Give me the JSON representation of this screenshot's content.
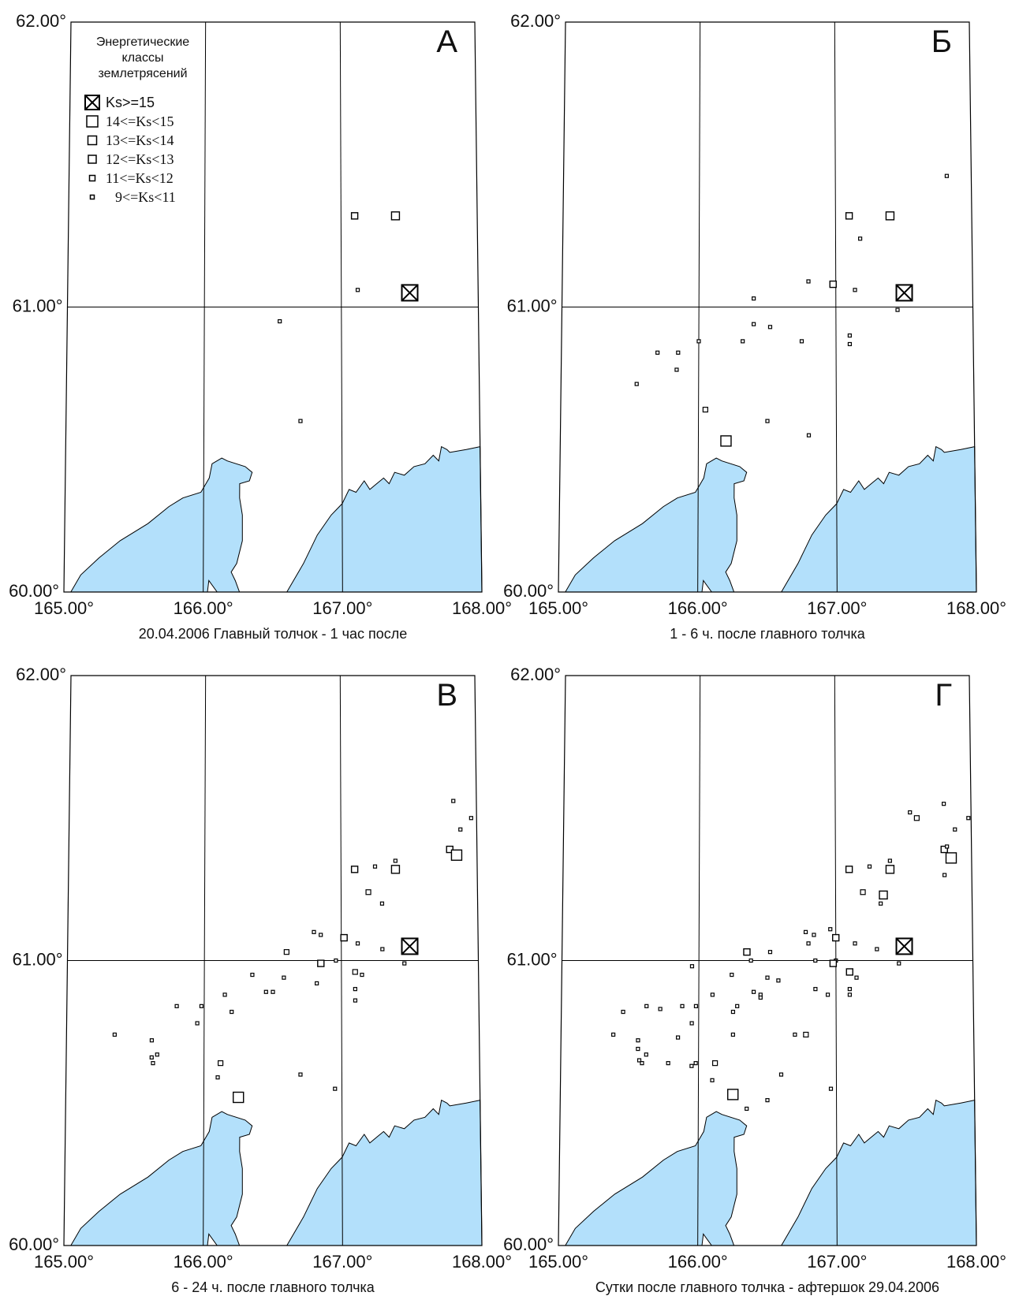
{
  "legend": {
    "title_lines": [
      "Энергетические",
      "классы",
      "землетрясений"
    ],
    "items": [
      {
        "label": "Ks>=15",
        "icon": "crossed-square",
        "serif": false
      },
      {
        "label": "14<=Ks<15",
        "icon": "square-large",
        "serif": true
      },
      {
        "label": "13<=Ks<14",
        "icon": "square-medium",
        "serif": true
      },
      {
        "label": "12<=Ks<13",
        "icon": "square-small",
        "serif": true
      },
      {
        "label": "11<=Ks<12",
        "icon": "square-xsmall",
        "serif": true
      },
      {
        "label": "9<=Ks<11",
        "icon": "square-tiny",
        "serif": true
      }
    ]
  },
  "axes": {
    "lat_ticks": [
      "62.00°",
      "61.00°",
      "60.00°"
    ],
    "lon_ticks": [
      "165.00°",
      "166.00°",
      "167.00°",
      "168.00°"
    ],
    "lat_range": [
      60,
      62
    ],
    "lon_range": [
      165,
      168
    ]
  },
  "colors": {
    "water": "#b3e0fb",
    "line": "#000000"
  },
  "panels": [
    {
      "letter": "А",
      "caption": "20.04.2006 Главный толчок - 1 час после",
      "events": [
        {
          "lon": 167.5,
          "lat": 61.05,
          "ks": 15
        },
        {
          "lon": 167.1,
          "lat": 61.32,
          "ks": 12
        },
        {
          "lon": 167.4,
          "lat": 61.32,
          "ks": 13
        },
        {
          "lon": 167.12,
          "lat": 61.06,
          "ks": 10
        },
        {
          "lon": 166.55,
          "lat": 60.95,
          "ks": 10
        },
        {
          "lon": 166.7,
          "lat": 60.6,
          "ks": 10
        }
      ]
    },
    {
      "letter": "Б",
      "caption": "1 - 6 ч. после главного толчка",
      "events": [
        {
          "lon": 167.5,
          "lat": 61.05,
          "ks": 15
        },
        {
          "lon": 167.1,
          "lat": 61.32,
          "ks": 12
        },
        {
          "lon": 167.4,
          "lat": 61.32,
          "ks": 13
        },
        {
          "lon": 167.18,
          "lat": 61.24,
          "ks": 10
        },
        {
          "lon": 167.82,
          "lat": 61.46,
          "ks": 10
        },
        {
          "lon": 166.8,
          "lat": 61.09,
          "ks": 10
        },
        {
          "lon": 166.98,
          "lat": 61.08,
          "ks": 12
        },
        {
          "lon": 167.14,
          "lat": 61.06,
          "ks": 10
        },
        {
          "lon": 166.4,
          "lat": 61.03,
          "ks": 10
        },
        {
          "lon": 167.45,
          "lat": 60.99,
          "ks": 10
        },
        {
          "lon": 166.4,
          "lat": 60.94,
          "ks": 10
        },
        {
          "lon": 166.52,
          "lat": 60.93,
          "ks": 10
        },
        {
          "lon": 166.0,
          "lat": 60.88,
          "ks": 10
        },
        {
          "lon": 166.32,
          "lat": 60.88,
          "ks": 10
        },
        {
          "lon": 166.75,
          "lat": 60.88,
          "ks": 10
        },
        {
          "lon": 167.1,
          "lat": 60.9,
          "ks": 10
        },
        {
          "lon": 167.1,
          "lat": 60.87,
          "ks": 10
        },
        {
          "lon": 165.85,
          "lat": 60.84,
          "ks": 10
        },
        {
          "lon": 165.7,
          "lat": 60.84,
          "ks": 10
        },
        {
          "lon": 165.84,
          "lat": 60.78,
          "ks": 10
        },
        {
          "lon": 165.55,
          "lat": 60.73,
          "ks": 10
        },
        {
          "lon": 166.05,
          "lat": 60.64,
          "ks": 11
        },
        {
          "lon": 166.5,
          "lat": 60.6,
          "ks": 10
        },
        {
          "lon": 166.8,
          "lat": 60.55,
          "ks": 10
        },
        {
          "lon": 166.2,
          "lat": 60.53,
          "ks": 14
        }
      ]
    },
    {
      "letter": "В",
      "caption": "6 - 24 ч. после главного толчка",
      "events": [
        {
          "lon": 167.5,
          "lat": 61.05,
          "ks": 15
        },
        {
          "lon": 167.1,
          "lat": 61.32,
          "ks": 12
        },
        {
          "lon": 167.4,
          "lat": 61.32,
          "ks": 13
        },
        {
          "lon": 167.25,
          "lat": 61.33,
          "ks": 10
        },
        {
          "lon": 167.4,
          "lat": 61.35,
          "ks": 10
        },
        {
          "lon": 167.2,
          "lat": 61.24,
          "ks": 11
        },
        {
          "lon": 167.3,
          "lat": 61.2,
          "ks": 10
        },
        {
          "lon": 167.83,
          "lat": 61.56,
          "ks": 10
        },
        {
          "lon": 167.96,
          "lat": 61.5,
          "ks": 10
        },
        {
          "lon": 167.88,
          "lat": 61.46,
          "ks": 10
        },
        {
          "lon": 167.8,
          "lat": 61.39,
          "ks": 12
        },
        {
          "lon": 167.85,
          "lat": 61.37,
          "ks": 14
        },
        {
          "lon": 167.02,
          "lat": 61.08,
          "ks": 12
        },
        {
          "lon": 166.8,
          "lat": 61.1,
          "ks": 10
        },
        {
          "lon": 166.85,
          "lat": 61.09,
          "ks": 10
        },
        {
          "lon": 167.12,
          "lat": 61.06,
          "ks": 10
        },
        {
          "lon": 167.3,
          "lat": 61.04,
          "ks": 10
        },
        {
          "lon": 166.6,
          "lat": 61.03,
          "ks": 11
        },
        {
          "lon": 166.96,
          "lat": 61.0,
          "ks": 10
        },
        {
          "lon": 167.46,
          "lat": 60.99,
          "ks": 10
        },
        {
          "lon": 166.85,
          "lat": 60.99,
          "ks": 12
        },
        {
          "lon": 167.1,
          "lat": 60.96,
          "ks": 11
        },
        {
          "lon": 167.15,
          "lat": 60.95,
          "ks": 10
        },
        {
          "lon": 166.82,
          "lat": 60.92,
          "ks": 10
        },
        {
          "lon": 166.58,
          "lat": 60.94,
          "ks": 10
        },
        {
          "lon": 166.35,
          "lat": 60.95,
          "ks": 10
        },
        {
          "lon": 166.45,
          "lat": 60.89,
          "ks": 10
        },
        {
          "lon": 166.5,
          "lat": 60.89,
          "ks": 10
        },
        {
          "lon": 166.15,
          "lat": 60.88,
          "ks": 10
        },
        {
          "lon": 167.1,
          "lat": 60.9,
          "ks": 10
        },
        {
          "lon": 167.1,
          "lat": 60.86,
          "ks": 10
        },
        {
          "lon": 166.2,
          "lat": 60.82,
          "ks": 10
        },
        {
          "lon": 165.98,
          "lat": 60.84,
          "ks": 10
        },
        {
          "lon": 165.8,
          "lat": 60.84,
          "ks": 10
        },
        {
          "lon": 165.95,
          "lat": 60.78,
          "ks": 10
        },
        {
          "lon": 165.35,
          "lat": 60.74,
          "ks": 10
        },
        {
          "lon": 165.62,
          "lat": 60.72,
          "ks": 10
        },
        {
          "lon": 165.66,
          "lat": 60.67,
          "ks": 10
        },
        {
          "lon": 165.62,
          "lat": 60.66,
          "ks": 10
        },
        {
          "lon": 165.63,
          "lat": 60.64,
          "ks": 10
        },
        {
          "lon": 166.12,
          "lat": 60.64,
          "ks": 11
        },
        {
          "lon": 166.1,
          "lat": 60.59,
          "ks": 10
        },
        {
          "lon": 166.7,
          "lat": 60.6,
          "ks": 10
        },
        {
          "lon": 166.95,
          "lat": 60.55,
          "ks": 10
        },
        {
          "lon": 166.25,
          "lat": 60.52,
          "ks": 14
        }
      ]
    },
    {
      "letter": "Г",
      "caption": "Сутки после главного толчка - афтершок 29.04.2006",
      "events": [
        {
          "lon": 167.5,
          "lat": 61.05,
          "ks": 15
        },
        {
          "lon": 167.1,
          "lat": 61.32,
          "ks": 12
        },
        {
          "lon": 167.4,
          "lat": 61.32,
          "ks": 13
        },
        {
          "lon": 167.25,
          "lat": 61.33,
          "ks": 10
        },
        {
          "lon": 167.4,
          "lat": 61.35,
          "ks": 10
        },
        {
          "lon": 167.2,
          "lat": 61.24,
          "ks": 11
        },
        {
          "lon": 167.35,
          "lat": 61.23,
          "ks": 13
        },
        {
          "lon": 167.33,
          "lat": 61.2,
          "ks": 10
        },
        {
          "lon": 167.55,
          "lat": 61.52,
          "ks": 10
        },
        {
          "lon": 167.6,
          "lat": 61.5,
          "ks": 11
        },
        {
          "lon": 167.8,
          "lat": 61.55,
          "ks": 10
        },
        {
          "lon": 167.98,
          "lat": 61.5,
          "ks": 10
        },
        {
          "lon": 167.88,
          "lat": 61.46,
          "ks": 10
        },
        {
          "lon": 167.8,
          "lat": 61.39,
          "ks": 12
        },
        {
          "lon": 167.82,
          "lat": 61.4,
          "ks": 10
        },
        {
          "lon": 167.85,
          "lat": 61.36,
          "ks": 14
        },
        {
          "lon": 167.8,
          "lat": 61.3,
          "ks": 10
        },
        {
          "lon": 167.0,
          "lat": 61.08,
          "ks": 12
        },
        {
          "lon": 166.78,
          "lat": 61.1,
          "ks": 10
        },
        {
          "lon": 166.84,
          "lat": 61.09,
          "ks": 10
        },
        {
          "lon": 166.96,
          "lat": 61.11,
          "ks": 10
        },
        {
          "lon": 166.8,
          "lat": 61.06,
          "ks": 10
        },
        {
          "lon": 167.14,
          "lat": 61.06,
          "ks": 10
        },
        {
          "lon": 167.3,
          "lat": 61.04,
          "ks": 10
        },
        {
          "lon": 166.35,
          "lat": 61.03,
          "ks": 12
        },
        {
          "lon": 166.52,
          "lat": 61.03,
          "ks": 10
        },
        {
          "lon": 166.38,
          "lat": 61.0,
          "ks": 10
        },
        {
          "lon": 166.85,
          "lat": 61.0,
          "ks": 10
        },
        {
          "lon": 167.0,
          "lat": 61.0,
          "ks": 10
        },
        {
          "lon": 166.98,
          "lat": 60.99,
          "ks": 12
        },
        {
          "lon": 167.46,
          "lat": 60.99,
          "ks": 10
        },
        {
          "lon": 165.95,
          "lat": 60.98,
          "ks": 10
        },
        {
          "lon": 167.1,
          "lat": 60.96,
          "ks": 12
        },
        {
          "lon": 167.15,
          "lat": 60.94,
          "ks": 10
        },
        {
          "lon": 166.24,
          "lat": 60.95,
          "ks": 10
        },
        {
          "lon": 166.5,
          "lat": 60.94,
          "ks": 10
        },
        {
          "lon": 166.58,
          "lat": 60.93,
          "ks": 10
        },
        {
          "lon": 166.1,
          "lat": 60.88,
          "ks": 10
        },
        {
          "lon": 166.4,
          "lat": 60.89,
          "ks": 10
        },
        {
          "lon": 166.45,
          "lat": 60.88,
          "ks": 10
        },
        {
          "lon": 166.45,
          "lat": 60.87,
          "ks": 10
        },
        {
          "lon": 166.85,
          "lat": 60.9,
          "ks": 10
        },
        {
          "lon": 167.1,
          "lat": 60.9,
          "ks": 10
        },
        {
          "lon": 166.94,
          "lat": 60.88,
          "ks": 10
        },
        {
          "lon": 167.1,
          "lat": 60.88,
          "ks": 10
        },
        {
          "lon": 166.28,
          "lat": 60.84,
          "ks": 10
        },
        {
          "lon": 166.25,
          "lat": 60.82,
          "ks": 10
        },
        {
          "lon": 165.62,
          "lat": 60.84,
          "ks": 10
        },
        {
          "lon": 165.72,
          "lat": 60.83,
          "ks": 10
        },
        {
          "lon": 165.88,
          "lat": 60.84,
          "ks": 10
        },
        {
          "lon": 165.98,
          "lat": 60.84,
          "ks": 10
        },
        {
          "lon": 165.45,
          "lat": 60.82,
          "ks": 10
        },
        {
          "lon": 165.95,
          "lat": 60.78,
          "ks": 10
        },
        {
          "lon": 165.38,
          "lat": 60.74,
          "ks": 10
        },
        {
          "lon": 165.85,
          "lat": 60.73,
          "ks": 10
        },
        {
          "lon": 166.25,
          "lat": 60.74,
          "ks": 10
        },
        {
          "lon": 166.7,
          "lat": 60.74,
          "ks": 10
        },
        {
          "lon": 166.78,
          "lat": 60.74,
          "ks": 11
        },
        {
          "lon": 165.56,
          "lat": 60.72,
          "ks": 10
        },
        {
          "lon": 165.56,
          "lat": 60.69,
          "ks": 10
        },
        {
          "lon": 165.62,
          "lat": 60.67,
          "ks": 10
        },
        {
          "lon": 165.57,
          "lat": 60.65,
          "ks": 10
        },
        {
          "lon": 165.59,
          "lat": 60.64,
          "ks": 10
        },
        {
          "lon": 165.78,
          "lat": 60.64,
          "ks": 10
        },
        {
          "lon": 165.95,
          "lat": 60.63,
          "ks": 10
        },
        {
          "lon": 165.98,
          "lat": 60.64,
          "ks": 10
        },
        {
          "lon": 166.12,
          "lat": 60.64,
          "ks": 11
        },
        {
          "lon": 166.1,
          "lat": 60.58,
          "ks": 10
        },
        {
          "lon": 166.6,
          "lat": 60.6,
          "ks": 10
        },
        {
          "lon": 166.96,
          "lat": 60.55,
          "ks": 10
        },
        {
          "lon": 166.25,
          "lat": 60.53,
          "ks": 14
        },
        {
          "lon": 166.5,
          "lat": 60.51,
          "ks": 10
        },
        {
          "lon": 166.35,
          "lat": 60.48,
          "ks": 10
        }
      ]
    }
  ]
}
